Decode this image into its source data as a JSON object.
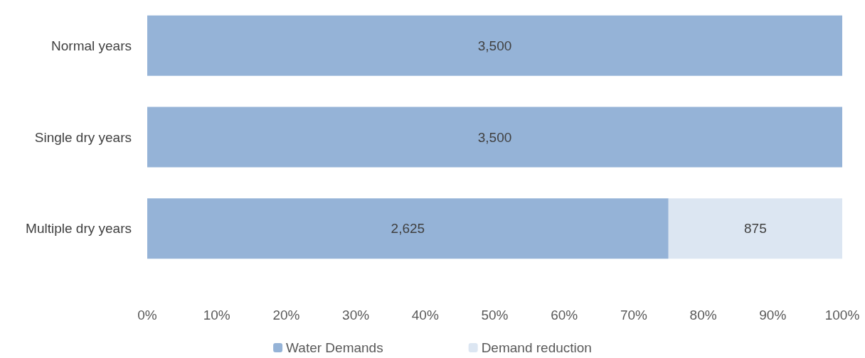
{
  "chart_data": {
    "type": "bar",
    "orientation": "horizontal",
    "stacked": true,
    "categories": [
      "Normal years",
      "Single dry years",
      "Multiple dry years"
    ],
    "series": [
      {
        "name": "Water Demands",
        "color": "#95b3d7",
        "values": [
          3500,
          3500,
          2625
        ],
        "value_labels": [
          "3,500",
          "3,500",
          "2,625"
        ]
      },
      {
        "name": "Demand reduction",
        "color": "#dce6f2",
        "values": [
          null,
          null,
          875
        ],
        "value_labels": [
          null,
          null,
          "875"
        ]
      }
    ],
    "xlim": [
      0,
      3500
    ],
    "x2lim": [
      0,
      100
    ],
    "x2ticks": [
      {
        "value": 0,
        "label": "0%"
      },
      {
        "value": 10,
        "label": "10%"
      },
      {
        "value": 20,
        "label": "20%"
      },
      {
        "value": 30,
        "label": "30%"
      },
      {
        "value": 40,
        "label": "40%"
      },
      {
        "value": 50,
        "label": "50%"
      },
      {
        "value": 60,
        "label": "60%"
      },
      {
        "value": 70,
        "label": "70%"
      },
      {
        "value": 80,
        "label": "80%"
      },
      {
        "value": 90,
        "label": "90%"
      },
      {
        "value": 100,
        "label": "100%"
      }
    ],
    "grid": false,
    "legend": "bottom"
  }
}
